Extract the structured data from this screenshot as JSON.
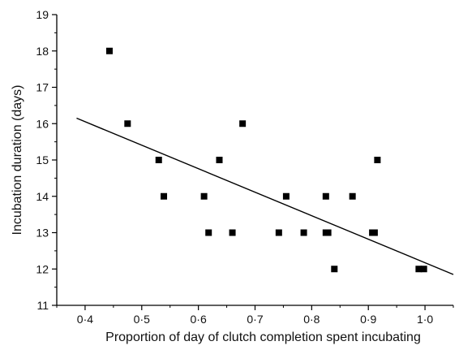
{
  "chart_data": {
    "type": "scatter",
    "title": "",
    "xlabel": "Proportion of day of clutch completion spent incubating",
    "ylabel": "Incubation duration (days)",
    "xlim": [
      0.35,
      1.05
    ],
    "ylim": [
      11,
      19
    ],
    "x_ticks": [
      0.4,
      0.5,
      0.6,
      0.7,
      0.8,
      0.9,
      1.0
    ],
    "x_tick_labels": [
      "0·4",
      "0·5",
      "0·6",
      "0·7",
      "0·8",
      "0·9",
      "1·0"
    ],
    "y_ticks": [
      11,
      12,
      13,
      14,
      15,
      16,
      17,
      18,
      19
    ],
    "y_tick_labels": [
      "11",
      "12",
      "13",
      "14",
      "15",
      "16",
      "17",
      "18",
      "19"
    ],
    "grid": false,
    "marker": "filled-square",
    "points": [
      {
        "x": 0.443,
        "y": 18
      },
      {
        "x": 0.475,
        "y": 16
      },
      {
        "x": 0.53,
        "y": 15
      },
      {
        "x": 0.539,
        "y": 14
      },
      {
        "x": 0.61,
        "y": 14
      },
      {
        "x": 0.618,
        "y": 13
      },
      {
        "x": 0.637,
        "y": 15
      },
      {
        "x": 0.66,
        "y": 13
      },
      {
        "x": 0.678,
        "y": 16
      },
      {
        "x": 0.742,
        "y": 13
      },
      {
        "x": 0.755,
        "y": 14
      },
      {
        "x": 0.786,
        "y": 13
      },
      {
        "x": 0.825,
        "y": 14
      },
      {
        "x": 0.825,
        "y": 13
      },
      {
        "x": 0.829,
        "y": 13
      },
      {
        "x": 0.84,
        "y": 12
      },
      {
        "x": 0.872,
        "y": 14
      },
      {
        "x": 0.907,
        "y": 13
      },
      {
        "x": 0.911,
        "y": 13
      },
      {
        "x": 0.916,
        "y": 15
      },
      {
        "x": 0.989,
        "y": 12
      },
      {
        "x": 0.998,
        "y": 12
      }
    ],
    "fit_line": {
      "x": [
        0.385,
        1.05
      ],
      "y": [
        16.15,
        11.85
      ]
    }
  }
}
